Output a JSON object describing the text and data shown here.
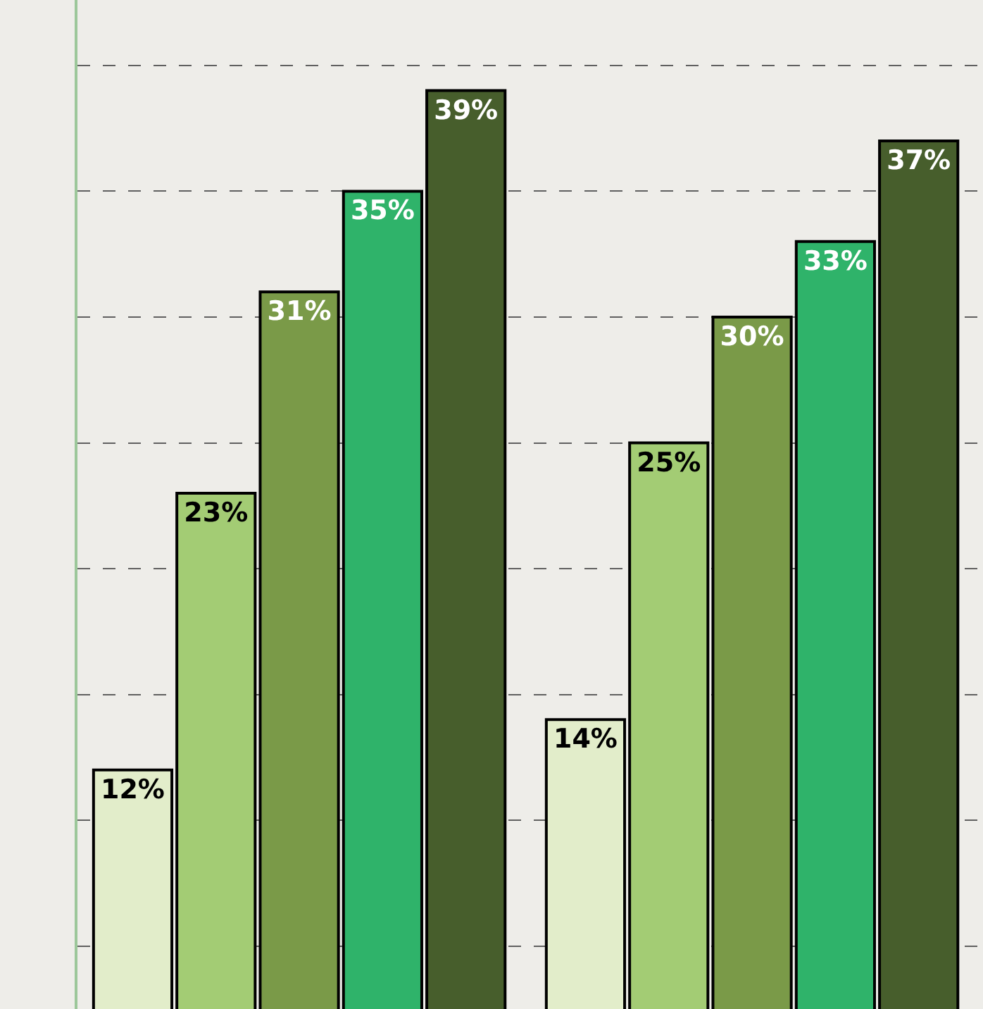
{
  "chart_data": {
    "type": "bar",
    "categories": [
      null,
      null
    ],
    "series": [
      {
        "color": "#e2edca",
        "values": [
          12,
          14
        ],
        "value_labels": [
          "12%",
          "14%"
        ]
      },
      {
        "color": "#a3cc74",
        "values": [
          23,
          25
        ],
        "value_labels": [
          "23%",
          "25%"
        ]
      },
      {
        "color": "#7a9a48",
        "values": [
          31,
          30
        ],
        "value_labels": [
          "31%",
          "30%"
        ]
      },
      {
        "color": "#2fb36a",
        "values": [
          35,
          33
        ],
        "value_labels": [
          "35%",
          "33%"
        ]
      },
      {
        "color": "#475e2c",
        "values": [
          39,
          37
        ],
        "value_labels": [
          "39%",
          "37%"
        ]
      }
    ],
    "ylim": [
      2.5,
      42.6
    ],
    "yticks": [
      {
        "value": 5,
        "label": null
      },
      {
        "value": 10,
        "label": null
      },
      {
        "value": 15,
        "label": null
      },
      {
        "value": 20,
        "label": null
      },
      {
        "value": 25,
        "label": null
      },
      {
        "value": 30,
        "label": null
      },
      {
        "value": 35,
        "label": null
      },
      {
        "value": 40,
        "label": null
      }
    ],
    "grid": "y"
  }
}
